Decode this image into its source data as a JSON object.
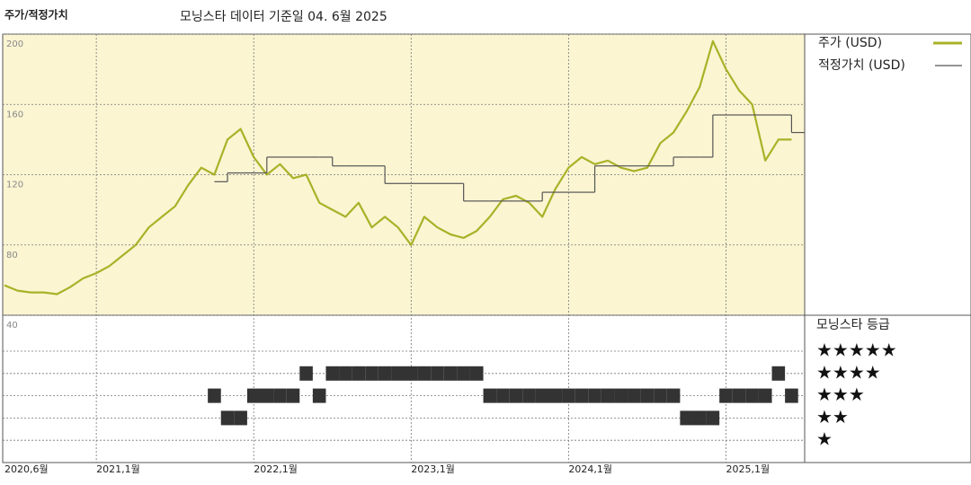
{
  "chart_data": {
    "type": "line",
    "title": "주가/적정가치",
    "subtitle": "모닝스타 데이터 기준일 04. 6월 2025",
    "x": [
      "2020-06",
      "2020-07",
      "2020-08",
      "2020-09",
      "2020-10",
      "2020-11",
      "2020-12",
      "2021-01",
      "2021-02",
      "2021-03",
      "2021-04",
      "2021-05",
      "2021-06",
      "2021-07",
      "2021-08",
      "2021-09",
      "2021-10",
      "2021-11",
      "2021-12",
      "2022-01",
      "2022-02",
      "2022-03",
      "2022-04",
      "2022-05",
      "2022-06",
      "2022-07",
      "2022-08",
      "2022-09",
      "2022-10",
      "2022-11",
      "2022-12",
      "2023-01",
      "2023-02",
      "2023-03",
      "2023-04",
      "2023-05",
      "2023-06",
      "2023-07",
      "2023-08",
      "2023-09",
      "2023-10",
      "2023-11",
      "2023-12",
      "2024-01",
      "2024-02",
      "2024-03",
      "2024-04",
      "2024-05",
      "2024-06",
      "2024-07",
      "2024-08",
      "2024-09",
      "2024-10",
      "2024-11",
      "2024-12",
      "2025-01",
      "2025-02",
      "2025-03",
      "2025-04",
      "2025-05",
      "2025-06"
    ],
    "xlim": [
      "2020-06",
      "2025-07"
    ],
    "xticks": [
      {
        "value": "2020-06",
        "label": "2020,6월"
      },
      {
        "value": "2021-01",
        "label": "2021,1월"
      },
      {
        "value": "2022-01",
        "label": "2022,1월"
      },
      {
        "value": "2023-01",
        "label": "2023,1월"
      },
      {
        "value": "2024-01",
        "label": "2024,1월"
      },
      {
        "value": "2025-01",
        "label": "2025,1월"
      }
    ],
    "ylim": [
      40,
      200
    ],
    "yticks": [
      40,
      80,
      120,
      160,
      200
    ],
    "grid": true,
    "series": [
      {
        "name": "주가 (USD)",
        "color": "#a9b228",
        "values": [
          57,
          54,
          53,
          53,
          52,
          56,
          61,
          64,
          68,
          74,
          80,
          90,
          96,
          102,
          114,
          124,
          120,
          140,
          146,
          130,
          120,
          126,
          118,
          120,
          104,
          100,
          96,
          104,
          90,
          96,
          90,
          80,
          96,
          90,
          86,
          84,
          88,
          96,
          106,
          108,
          104,
          96,
          112,
          124,
          130,
          126,
          128,
          124,
          122,
          124,
          138,
          144,
          156,
          170,
          196,
          180,
          168,
          160,
          128,
          140,
          140
        ]
      },
      {
        "name": "적정가치 (USD)",
        "color": "#555555",
        "step": true,
        "values": [
          null,
          null,
          null,
          null,
          null,
          null,
          null,
          null,
          null,
          null,
          null,
          null,
          null,
          null,
          null,
          null,
          116,
          121,
          121,
          121,
          130,
          130,
          130,
          130,
          130,
          125,
          125,
          125,
          125,
          115,
          115,
          115,
          115,
          115,
          115,
          105,
          105,
          105,
          105,
          105,
          105,
          110,
          110,
          110,
          110,
          125,
          125,
          125,
          125,
          125,
          125,
          130,
          130,
          130,
          154,
          154,
          154,
          154,
          154,
          154,
          144
        ]
      }
    ],
    "rating": {
      "title": "모닝스타 등급",
      "color": "#333333",
      "levels": [
        {
          "value": 5,
          "label": "★★★★★"
        },
        {
          "value": 4,
          "label": "★★★★"
        },
        {
          "value": 3,
          "label": "★★★"
        },
        {
          "value": 2,
          "label": "★★"
        },
        {
          "value": 1,
          "label": "★"
        }
      ],
      "values": [
        null,
        null,
        null,
        null,
        null,
        null,
        null,
        null,
        null,
        null,
        null,
        null,
        null,
        null,
        null,
        null,
        3,
        2,
        2,
        3,
        3,
        3,
        3,
        4,
        3,
        4,
        4,
        4,
        4,
        4,
        4,
        4,
        4,
        4,
        4,
        4,
        4,
        3,
        3,
        3,
        3,
        3,
        3,
        3,
        3,
        3,
        3,
        3,
        3,
        3,
        3,
        3,
        2,
        2,
        2,
        3,
        3,
        3,
        3,
        4,
        3
      ]
    }
  }
}
